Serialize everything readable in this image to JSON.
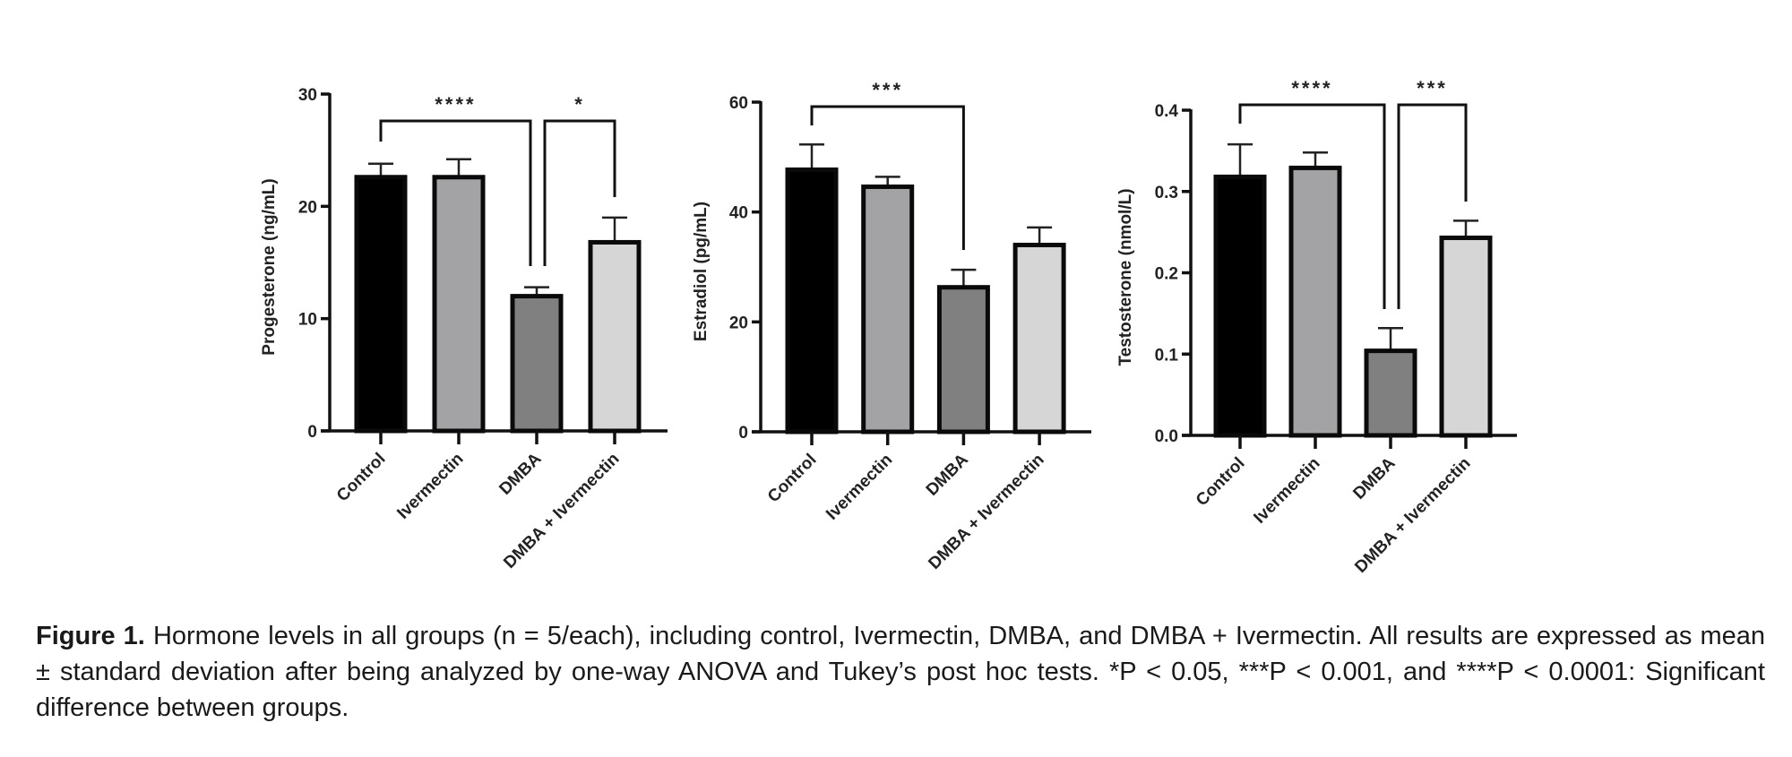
{
  "chart_data": [
    {
      "type": "bar",
      "title": "",
      "xlabel": "",
      "ylabel": "Progesterone (ng/mL)",
      "ylim": [
        0,
        30
      ],
      "yticks": [
        0,
        10,
        20,
        30
      ],
      "grid": false,
      "categories": [
        "Control",
        "Ivermectin",
        "DMBA",
        "DMBA + Ivermectin"
      ],
      "values": [
        22.6,
        22.6,
        12.0,
        16.8
      ],
      "error_upper": [
        23.8,
        24.2,
        12.8,
        19.0
      ],
      "colors": [
        "#000000",
        "#a3a3a6",
        "#808080",
        "#d6d6d6"
      ],
      "significance": [
        {
          "from": 0,
          "to": 2,
          "label": "****"
        },
        {
          "from": 2,
          "to": 3,
          "label": "*"
        }
      ]
    },
    {
      "type": "bar",
      "title": "",
      "xlabel": "",
      "ylabel": "Estradiol (pg/mL)",
      "ylim": [
        0,
        60
      ],
      "yticks": [
        0,
        20,
        40,
        60
      ],
      "grid": false,
      "categories": [
        "Control",
        "Ivermectin",
        "DMBA",
        "DMBA + Ivermectin"
      ],
      "values": [
        47.7,
        44.6,
        26.3,
        34.0
      ],
      "error_upper": [
        52.3,
        46.4,
        29.5,
        37.2
      ],
      "colors": [
        "#000000",
        "#a3a3a6",
        "#808080",
        "#d6d6d6"
      ],
      "significance": [
        {
          "from": 0,
          "to": 2,
          "label": "***"
        }
      ]
    },
    {
      "type": "bar",
      "title": "",
      "xlabel": "",
      "ylabel": "Testosterone (nmol/L)",
      "ylim": [
        0,
        0.4
      ],
      "yticks": [
        "0.0",
        "0.1",
        "0.2",
        "0.3",
        "0.4"
      ],
      "grid": false,
      "categories": [
        "Control",
        "Ivermectin",
        "DMBA",
        "DMBA + Ivermectin"
      ],
      "values": [
        0.318,
        0.329,
        0.104,
        0.243
      ],
      "error_upper": [
        0.358,
        0.348,
        0.132,
        0.264
      ],
      "colors": [
        "#000000",
        "#a3a3a6",
        "#808080",
        "#d6d6d6"
      ],
      "significance": [
        {
          "from": 0,
          "to": 2,
          "label": "****"
        },
        {
          "from": 2,
          "to": 3,
          "label": "***"
        }
      ]
    }
  ],
  "caption": {
    "label": "Figure 1.",
    "text": " Hormone levels in all groups (n = 5/each), including control, Ivermectin, DMBA, and DMBA + Ivermectin. All results are expressed as mean ± standard deviation after being analyzed by one-way ANOVA and Tukey’s post hoc tests. *P < 0.05, ***P < 0.001, and ****P < 0.0001: Significant difference between groups."
  }
}
